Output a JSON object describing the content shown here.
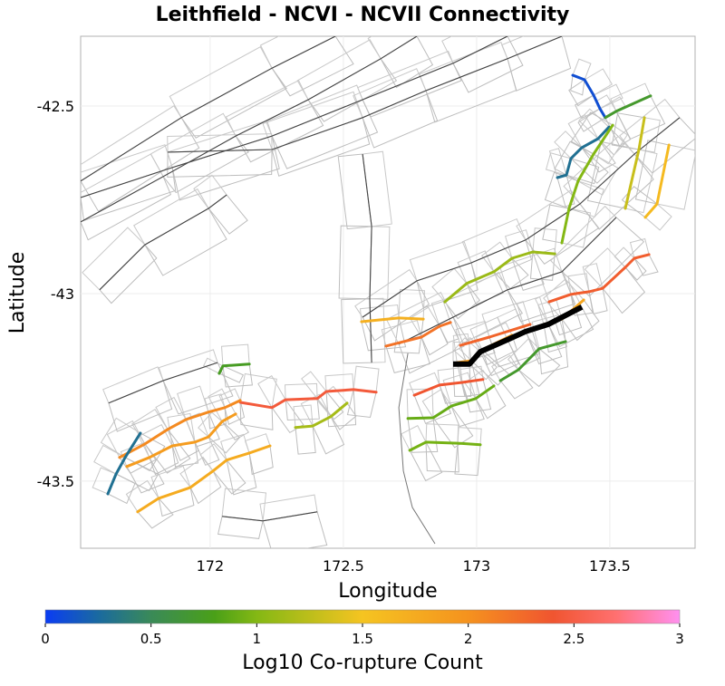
{
  "chart_data": {
    "type": "map",
    "title": "Leithfield - NCVI - NCVII Connectivity",
    "xlabel": "Longitude",
    "ylabel": "Latitude",
    "xlim": [
      171.514,
      173.82
    ],
    "ylim": [
      -43.679,
      -42.314
    ],
    "xticks": [
      {
        "value": 172,
        "label": "172"
      },
      {
        "value": 172.5,
        "label": "172.5"
      },
      {
        "value": 173,
        "label": "173"
      },
      {
        "value": 173.5,
        "label": "173.5"
      }
    ],
    "yticks": [
      {
        "value": -42.5,
        "label": "-42.5"
      },
      {
        "value": -43,
        "label": "-43"
      },
      {
        "value": -43.5,
        "label": "-43.5"
      }
    ],
    "grid": true,
    "colorbar": {
      "label": "Log10 Co-rupture Count",
      "range": [
        0,
        3
      ],
      "ticks": [
        {
          "value": 0,
          "label": "0"
        },
        {
          "value": 0.5,
          "label": "0.5"
        },
        {
          "value": 1,
          "label": "1"
        },
        {
          "value": 1.5,
          "label": "1.5"
        },
        {
          "value": 2,
          "label": "2"
        },
        {
          "value": 2.5,
          "label": "2.5"
        },
        {
          "value": 3,
          "label": "3"
        }
      ],
      "stops": [
        [
          0,
          "#0a3cf4"
        ],
        [
          0.25,
          "#1a6aa0"
        ],
        [
          0.5,
          "#3a8a58"
        ],
        [
          0.8,
          "#4aa018"
        ],
        [
          1.0,
          "#84b814"
        ],
        [
          1.5,
          "#f5c421"
        ],
        [
          2.0,
          "#f5921e"
        ],
        [
          2.4,
          "#f05530"
        ],
        [
          2.7,
          "#ff7070"
        ],
        [
          3.0,
          "#ff90f0"
        ]
      ]
    },
    "target_fault": {
      "color": "#000000",
      "points": [
        [
          172.912,
          -43.188
        ],
        [
          172.973,
          -43.188
        ],
        [
          173.014,
          -43.155
        ],
        [
          173.116,
          -43.123
        ],
        [
          173.184,
          -43.101
        ],
        [
          173.269,
          -43.082
        ],
        [
          173.395,
          -43.036
        ]
      ]
    },
    "faults": [
      {
        "value": 0.1,
        "points": [
          [
            173.361,
            -42.418
          ],
          [
            173.405,
            -42.43
          ],
          [
            173.439,
            -42.471
          ],
          [
            173.463,
            -42.507
          ],
          [
            173.483,
            -42.531
          ]
        ]
      },
      {
        "value": 0.7,
        "points": [
          [
            173.483,
            -42.531
          ],
          [
            173.524,
            -42.514
          ],
          [
            173.653,
            -42.473
          ]
        ]
      },
      {
        "value": 0.3,
        "points": [
          [
            173.303,
            -42.691
          ],
          [
            173.337,
            -42.684
          ],
          [
            173.354,
            -42.64
          ],
          [
            173.395,
            -42.611
          ],
          [
            173.456,
            -42.587
          ],
          [
            173.497,
            -42.556
          ]
        ]
      },
      {
        "value": 1.0,
        "points": [
          [
            173.511,
            -42.551
          ],
          [
            173.439,
            -42.628
          ],
          [
            173.381,
            -42.7
          ],
          [
            173.347,
            -42.773
          ],
          [
            173.32,
            -42.865
          ]
        ]
      },
      {
        "value": 1.3,
        "points": [
          [
            173.63,
            -42.531
          ],
          [
            173.609,
            -42.616
          ],
          [
            173.558,
            -42.773
          ]
        ]
      },
      {
        "value": 1.6,
        "points": [
          [
            173.722,
            -42.604
          ],
          [
            173.677,
            -42.761
          ],
          [
            173.633,
            -42.797
          ]
        ]
      },
      {
        "value": 1.1,
        "points": [
          [
            172.881,
            -43.022
          ],
          [
            172.963,
            -42.973
          ],
          [
            173.065,
            -42.942
          ],
          [
            173.133,
            -42.906
          ],
          [
            173.211,
            -42.889
          ],
          [
            173.293,
            -42.894
          ]
        ]
      },
      {
        "value": 2.35,
        "points": [
          [
            173.272,
            -43.022
          ],
          [
            173.354,
            -43.002
          ],
          [
            173.422,
            -42.995
          ],
          [
            173.473,
            -42.986
          ],
          [
            173.558,
            -42.93
          ],
          [
            173.592,
            -42.906
          ],
          [
            173.647,
            -42.896
          ]
        ]
      },
      {
        "value": 1.8,
        "points": [
          [
            173.252,
            -43.082
          ],
          [
            173.32,
            -43.068
          ],
          [
            173.402,
            -43.017
          ]
        ]
      },
      {
        "value": 1.9,
        "points": [
          [
            172.926,
            -43.184
          ],
          [
            172.98,
            -43.179
          ],
          [
            173.021,
            -43.15
          ],
          [
            173.133,
            -43.111
          ]
        ]
      },
      {
        "value": 2.3,
        "points": [
          [
            172.939,
            -43.138
          ],
          [
            173.048,
            -43.116
          ],
          [
            173.201,
            -43.082
          ]
        ]
      },
      {
        "value": 0.7,
        "points": [
          [
            173.089,
            -43.232
          ],
          [
            173.157,
            -43.203
          ],
          [
            173.235,
            -43.147
          ],
          [
            173.334,
            -43.128
          ]
        ]
      },
      {
        "value": 1.7,
        "points": [
          [
            172.568,
            -43.075
          ],
          [
            172.708,
            -43.065
          ],
          [
            172.8,
            -43.068
          ]
        ]
      },
      {
        "value": 2.2,
        "points": [
          [
            172.66,
            -43.14
          ],
          [
            172.793,
            -43.116
          ],
          [
            172.861,
            -43.087
          ],
          [
            172.902,
            -43.077
          ]
        ]
      },
      {
        "value": 2.4,
        "points": [
          [
            172.766,
            -43.271
          ],
          [
            172.861,
            -43.244
          ],
          [
            172.946,
            -43.237
          ],
          [
            173.024,
            -43.229
          ]
        ]
      },
      {
        "value": 0.9,
        "points": [
          [
            172.742,
            -43.333
          ],
          [
            172.837,
            -43.331
          ],
          [
            172.905,
            -43.3
          ],
          [
            172.997,
            -43.28
          ],
          [
            173.065,
            -43.246
          ]
        ]
      },
      {
        "value": 0.95,
        "points": [
          [
            172.749,
            -43.418
          ],
          [
            172.81,
            -43.396
          ],
          [
            172.929,
            -43.399
          ],
          [
            173.014,
            -43.403
          ]
        ]
      },
      {
        "value": 2.45,
        "points": [
          [
            172.113,
            -43.29
          ],
          [
            172.232,
            -43.304
          ],
          [
            172.283,
            -43.283
          ],
          [
            172.402,
            -43.28
          ],
          [
            172.436,
            -43.261
          ],
          [
            172.538,
            -43.256
          ],
          [
            172.623,
            -43.263
          ]
        ]
      },
      {
        "value": 1.15,
        "points": [
          [
            172.32,
            -43.357
          ],
          [
            172.385,
            -43.353
          ],
          [
            172.453,
            -43.328
          ],
          [
            172.514,
            -43.292
          ]
        ]
      },
      {
        "value": 0.75,
        "points": [
          [
            172.034,
            -43.213
          ],
          [
            172.048,
            -43.193
          ],
          [
            172.147,
            -43.188
          ]
        ]
      },
      {
        "value": 2.05,
        "points": [
          [
            171.66,
            -43.437
          ],
          [
            171.755,
            -43.401
          ],
          [
            171.841,
            -43.362
          ],
          [
            171.909,
            -43.336
          ],
          [
            171.994,
            -43.316
          ],
          [
            172.055,
            -43.304
          ],
          [
            172.113,
            -43.285
          ]
        ]
      },
      {
        "value": 1.9,
        "points": [
          [
            171.687,
            -43.461
          ],
          [
            171.772,
            -43.437
          ],
          [
            171.858,
            -43.406
          ],
          [
            171.943,
            -43.396
          ],
          [
            171.994,
            -43.382
          ],
          [
            172.045,
            -43.341
          ],
          [
            172.096,
            -43.321
          ]
        ]
      },
      {
        "value": 1.75,
        "points": [
          [
            171.728,
            -43.582
          ],
          [
            171.807,
            -43.546
          ],
          [
            171.926,
            -43.517
          ],
          [
            172.011,
            -43.473
          ],
          [
            172.062,
            -43.444
          ],
          [
            172.147,
            -43.425
          ],
          [
            172.225,
            -43.406
          ]
        ]
      },
      {
        "value": 0.3,
        "points": [
          [
            171.616,
            -43.534
          ],
          [
            171.647,
            -43.481
          ],
          [
            171.681,
            -43.437
          ],
          [
            171.738,
            -43.372
          ]
        ]
      }
    ],
    "background_faults": [
      [
        [
          171.514,
          -42.7
        ],
        [
          171.892,
          -42.531
        ],
        [
          172.232,
          -42.399
        ],
        [
          172.47,
          -42.314
        ]
      ],
      [
        [
          171.514,
          -42.809
        ],
        [
          171.824,
          -42.688
        ],
        [
          172.096,
          -42.58
        ],
        [
          172.368,
          -42.483
        ],
        [
          172.64,
          -42.374
        ],
        [
          172.776,
          -42.314
        ]
      ],
      [
        [
          171.841,
          -42.623
        ],
        [
          172.232,
          -42.616
        ],
        [
          172.572,
          -42.531
        ],
        [
          172.81,
          -42.459
        ],
        [
          173.116,
          -42.374
        ],
        [
          173.32,
          -42.314
        ]
      ],
      [
        [
          171.514,
          -42.744
        ],
        [
          171.858,
          -42.664
        ],
        [
          172.232,
          -42.58
        ],
        [
          172.572,
          -42.483
        ],
        [
          172.912,
          -42.386
        ],
        [
          173.116,
          -42.314
        ]
      ],
      [
        [
          171.585,
          -42.99
        ],
        [
          171.755,
          -42.87
        ],
        [
          171.994,
          -42.773
        ],
        [
          172.062,
          -42.737
        ]
      ],
      [
        [
          172.572,
          -43.063
        ],
        [
          172.776,
          -42.966
        ],
        [
          172.98,
          -42.918
        ],
        [
          173.184,
          -42.857
        ],
        [
          173.388,
          -42.761
        ],
        [
          173.592,
          -42.628
        ],
        [
          173.762,
          -42.531
        ]
      ],
      [
        [
          172.708,
          -43.135
        ],
        [
          172.912,
          -43.063
        ],
        [
          173.116,
          -42.99
        ],
        [
          173.32,
          -42.942
        ],
        [
          173.524,
          -42.797
        ]
      ],
      [
        [
          171.619,
          -43.292
        ],
        [
          171.824,
          -43.232
        ],
        [
          172.028,
          -43.184
        ]
      ],
      [
        [
          172.045,
          -43.594
        ],
        [
          172.198,
          -43.606
        ],
        [
          172.402,
          -43.582
        ]
      ],
      [
        [
          172.572,
          -42.628
        ],
        [
          172.606,
          -42.821
        ],
        [
          172.599,
          -43.014
        ],
        [
          172.606,
          -43.184
        ]
      ]
    ],
    "coastline": [
      [
        172.742,
        -43.159
      ],
      [
        172.708,
        -43.304
      ],
      [
        172.725,
        -43.473
      ],
      [
        172.759,
        -43.57
      ],
      [
        172.844,
        -43.667
      ]
    ]
  }
}
